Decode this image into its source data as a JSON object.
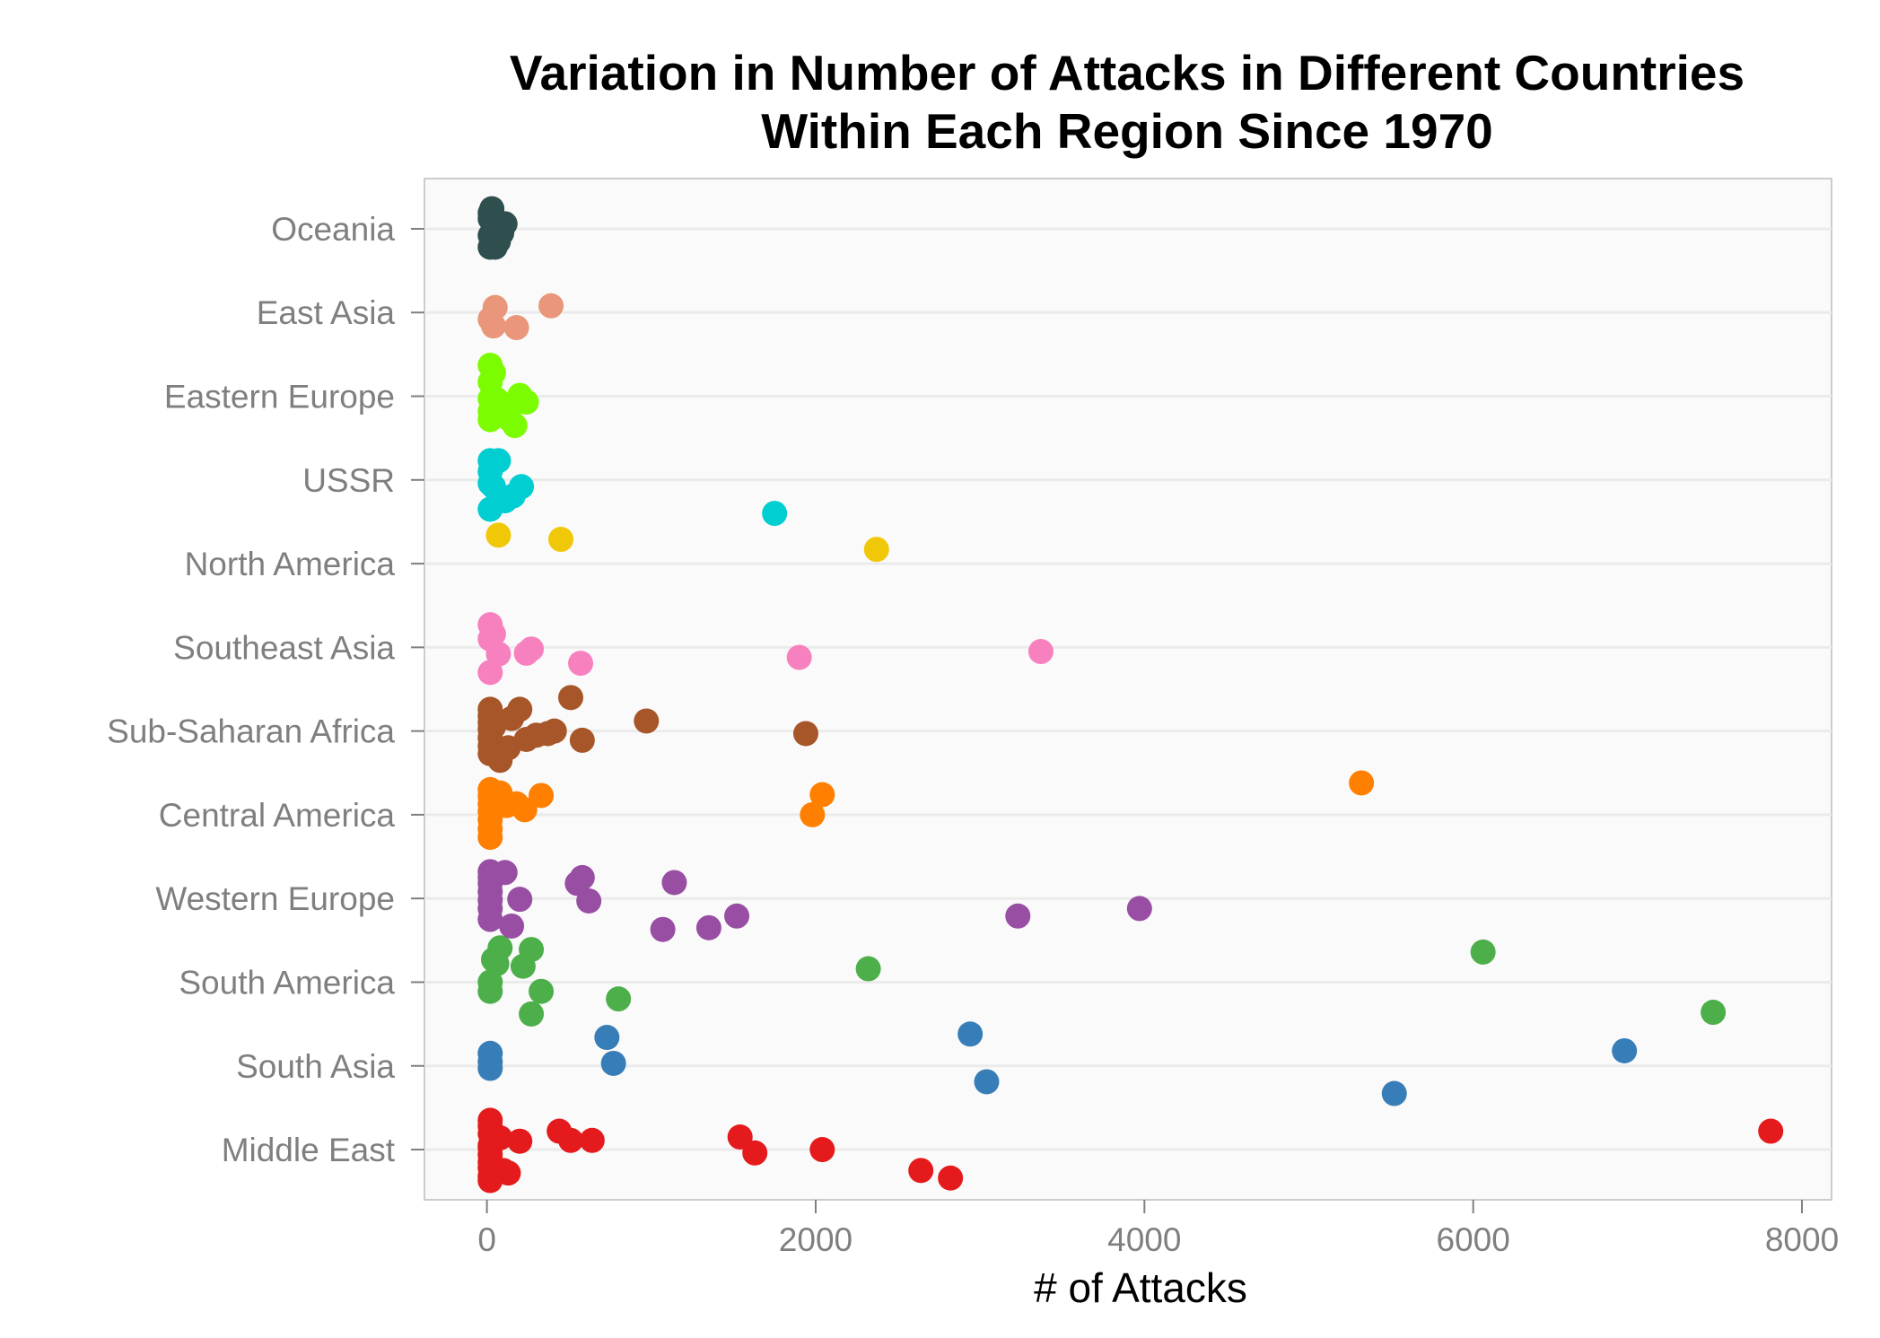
{
  "chart_data": {
    "type": "scatter",
    "title_lines": [
      "Variation in Number of Attacks in Different Countries",
      "Within Each Region Since 1970"
    ],
    "xlabel": "# of Attacks",
    "ylabel": "",
    "xlim": [
      -380,
      8180
    ],
    "x_ticks": [
      0,
      2000,
      4000,
      6000,
      8000
    ],
    "x_tick_labels": [
      "0",
      "2000",
      "4000",
      "6000",
      "8000"
    ],
    "grid": true,
    "legend": "none",
    "categories": [
      "Middle East",
      "South Asia",
      "South America",
      "Western Europe",
      "Central America",
      "Sub-Saharan Africa",
      "Southeast Asia",
      "North America",
      "USSR",
      "Eastern Europe",
      "East Asia",
      "Oceania"
    ],
    "series": [
      {
        "name": "Middle East",
        "color": "#e41a1c",
        "x": [
          7810,
          2820,
          2640,
          2040,
          1630,
          1540,
          640,
          510,
          440,
          200,
          100,
          20,
          20,
          20,
          20,
          20,
          20,
          20,
          20,
          20,
          80,
          130,
          20
        ],
        "jitter": [
          0.22,
          -0.34,
          -0.25,
          0.0,
          -0.04,
          0.15,
          0.11,
          0.11,
          0.22,
          0.1,
          -0.25,
          -0.37,
          0.35,
          0.28,
          0.19,
          0.05,
          -0.06,
          -0.15,
          -0.22,
          -0.32,
          0.14,
          -0.28,
          0.02
        ]
      },
      {
        "name": "South Asia",
        "color": "#377eb8",
        "x": [
          6920,
          5520,
          3040,
          2940,
          770,
          730,
          20,
          20,
          20
        ],
        "jitter": [
          0.18,
          -0.33,
          -0.19,
          0.38,
          0.03,
          0.34,
          0.15,
          0.05,
          -0.03
        ]
      },
      {
        "name": "South America",
        "color": "#4daf4a",
        "x": [
          7460,
          6060,
          2320,
          800,
          330,
          270,
          270,
          220,
          80,
          60,
          40,
          20,
          20
        ],
        "jitter": [
          -0.36,
          0.36,
          0.16,
          -0.2,
          -0.11,
          0.39,
          -0.38,
          0.19,
          0.41,
          0.22,
          0.27,
          -0.11,
          0.0
        ]
      },
      {
        "name": "Western Europe",
        "color": "#984ea3",
        "x": [
          3970,
          3230,
          1520,
          1350,
          1140,
          1070,
          620,
          580,
          550,
          200,
          150,
          110,
          20,
          20,
          20,
          20,
          20,
          20,
          20
        ],
        "jitter": [
          -0.12,
          -0.21,
          -0.21,
          -0.35,
          0.19,
          -0.37,
          -0.03,
          0.25,
          0.18,
          -0.01,
          -0.33,
          0.31,
          0.32,
          0.25,
          0.18,
          0.08,
          -0.02,
          -0.12,
          -0.25
        ]
      },
      {
        "name": "Central America",
        "color": "#ff7f00",
        "x": [
          5320,
          2040,
          1980,
          330,
          230,
          180,
          120,
          80,
          50,
          20,
          20,
          20,
          20,
          20,
          20,
          20
        ],
        "jitter": [
          0.38,
          0.24,
          0.0,
          0.23,
          0.06,
          0.13,
          0.11,
          0.26,
          0.19,
          0.3,
          0.22,
          0.13,
          0.04,
          -0.06,
          -0.17,
          -0.27
        ]
      },
      {
        "name": "Sub-Saharan Africa",
        "color": "#a65628",
        "x": [
          1940,
          970,
          580,
          510,
          410,
          370,
          200,
          240,
          130,
          80,
          40,
          20,
          20,
          20,
          20,
          20,
          20,
          20,
          300,
          150
        ],
        "jitter": [
          -0.03,
          0.12,
          -0.11,
          0.4,
          0.0,
          -0.03,
          0.26,
          -0.1,
          -0.2,
          -0.35,
          0.05,
          0.26,
          0.18,
          0.1,
          0.02,
          -0.08,
          -0.18,
          -0.27,
          -0.05,
          0.15
        ]
      },
      {
        "name": "Southeast Asia",
        "color": "#f781bf",
        "x": [
          3370,
          1900,
          570,
          270,
          240,
          70,
          40,
          20,
          20,
          20
        ],
        "jitter": [
          -0.05,
          -0.12,
          -0.19,
          -0.02,
          -0.07,
          -0.08,
          0.16,
          0.27,
          0.1,
          -0.3
        ]
      },
      {
        "name": "North America",
        "color": "#f0c808",
        "x": [
          2370,
          450,
          70
        ],
        "jitter": [
          0.17,
          0.29,
          0.34
        ]
      },
      {
        "name": "USSR",
        "color": "#00ced1",
        "x": [
          1750,
          210,
          160,
          110,
          70,
          40,
          20,
          20,
          20,
          20
        ],
        "jitter": [
          -0.4,
          -0.08,
          -0.19,
          -0.25,
          0.23,
          -0.08,
          0.23,
          0.1,
          -0.04,
          -0.35
        ]
      },
      {
        "name": "Eastern Europe",
        "color": "#7cfc00",
        "x": [
          240,
          200,
          170,
          140,
          100,
          60,
          40,
          20,
          20,
          20,
          20,
          20
        ],
        "jitter": [
          -0.07,
          0.01,
          -0.35,
          -0.28,
          -0.13,
          -0.04,
          0.28,
          0.37,
          0.17,
          -0.03,
          -0.18,
          -0.28
        ]
      },
      {
        "name": "East Asia",
        "color": "#e9967a",
        "x": [
          390,
          180,
          50,
          40,
          20
        ],
        "jitter": [
          0.08,
          -0.18,
          0.06,
          -0.16,
          -0.08
        ]
      },
      {
        "name": "Oceania",
        "color": "#2f4f4f",
        "x": [
          110,
          90,
          70,
          50,
          30,
          20,
          20,
          20,
          20
        ],
        "jitter": [
          0.06,
          -0.05,
          -0.15,
          -0.22,
          0.24,
          0.19,
          0.12,
          -0.08,
          -0.22
        ]
      }
    ]
  }
}
